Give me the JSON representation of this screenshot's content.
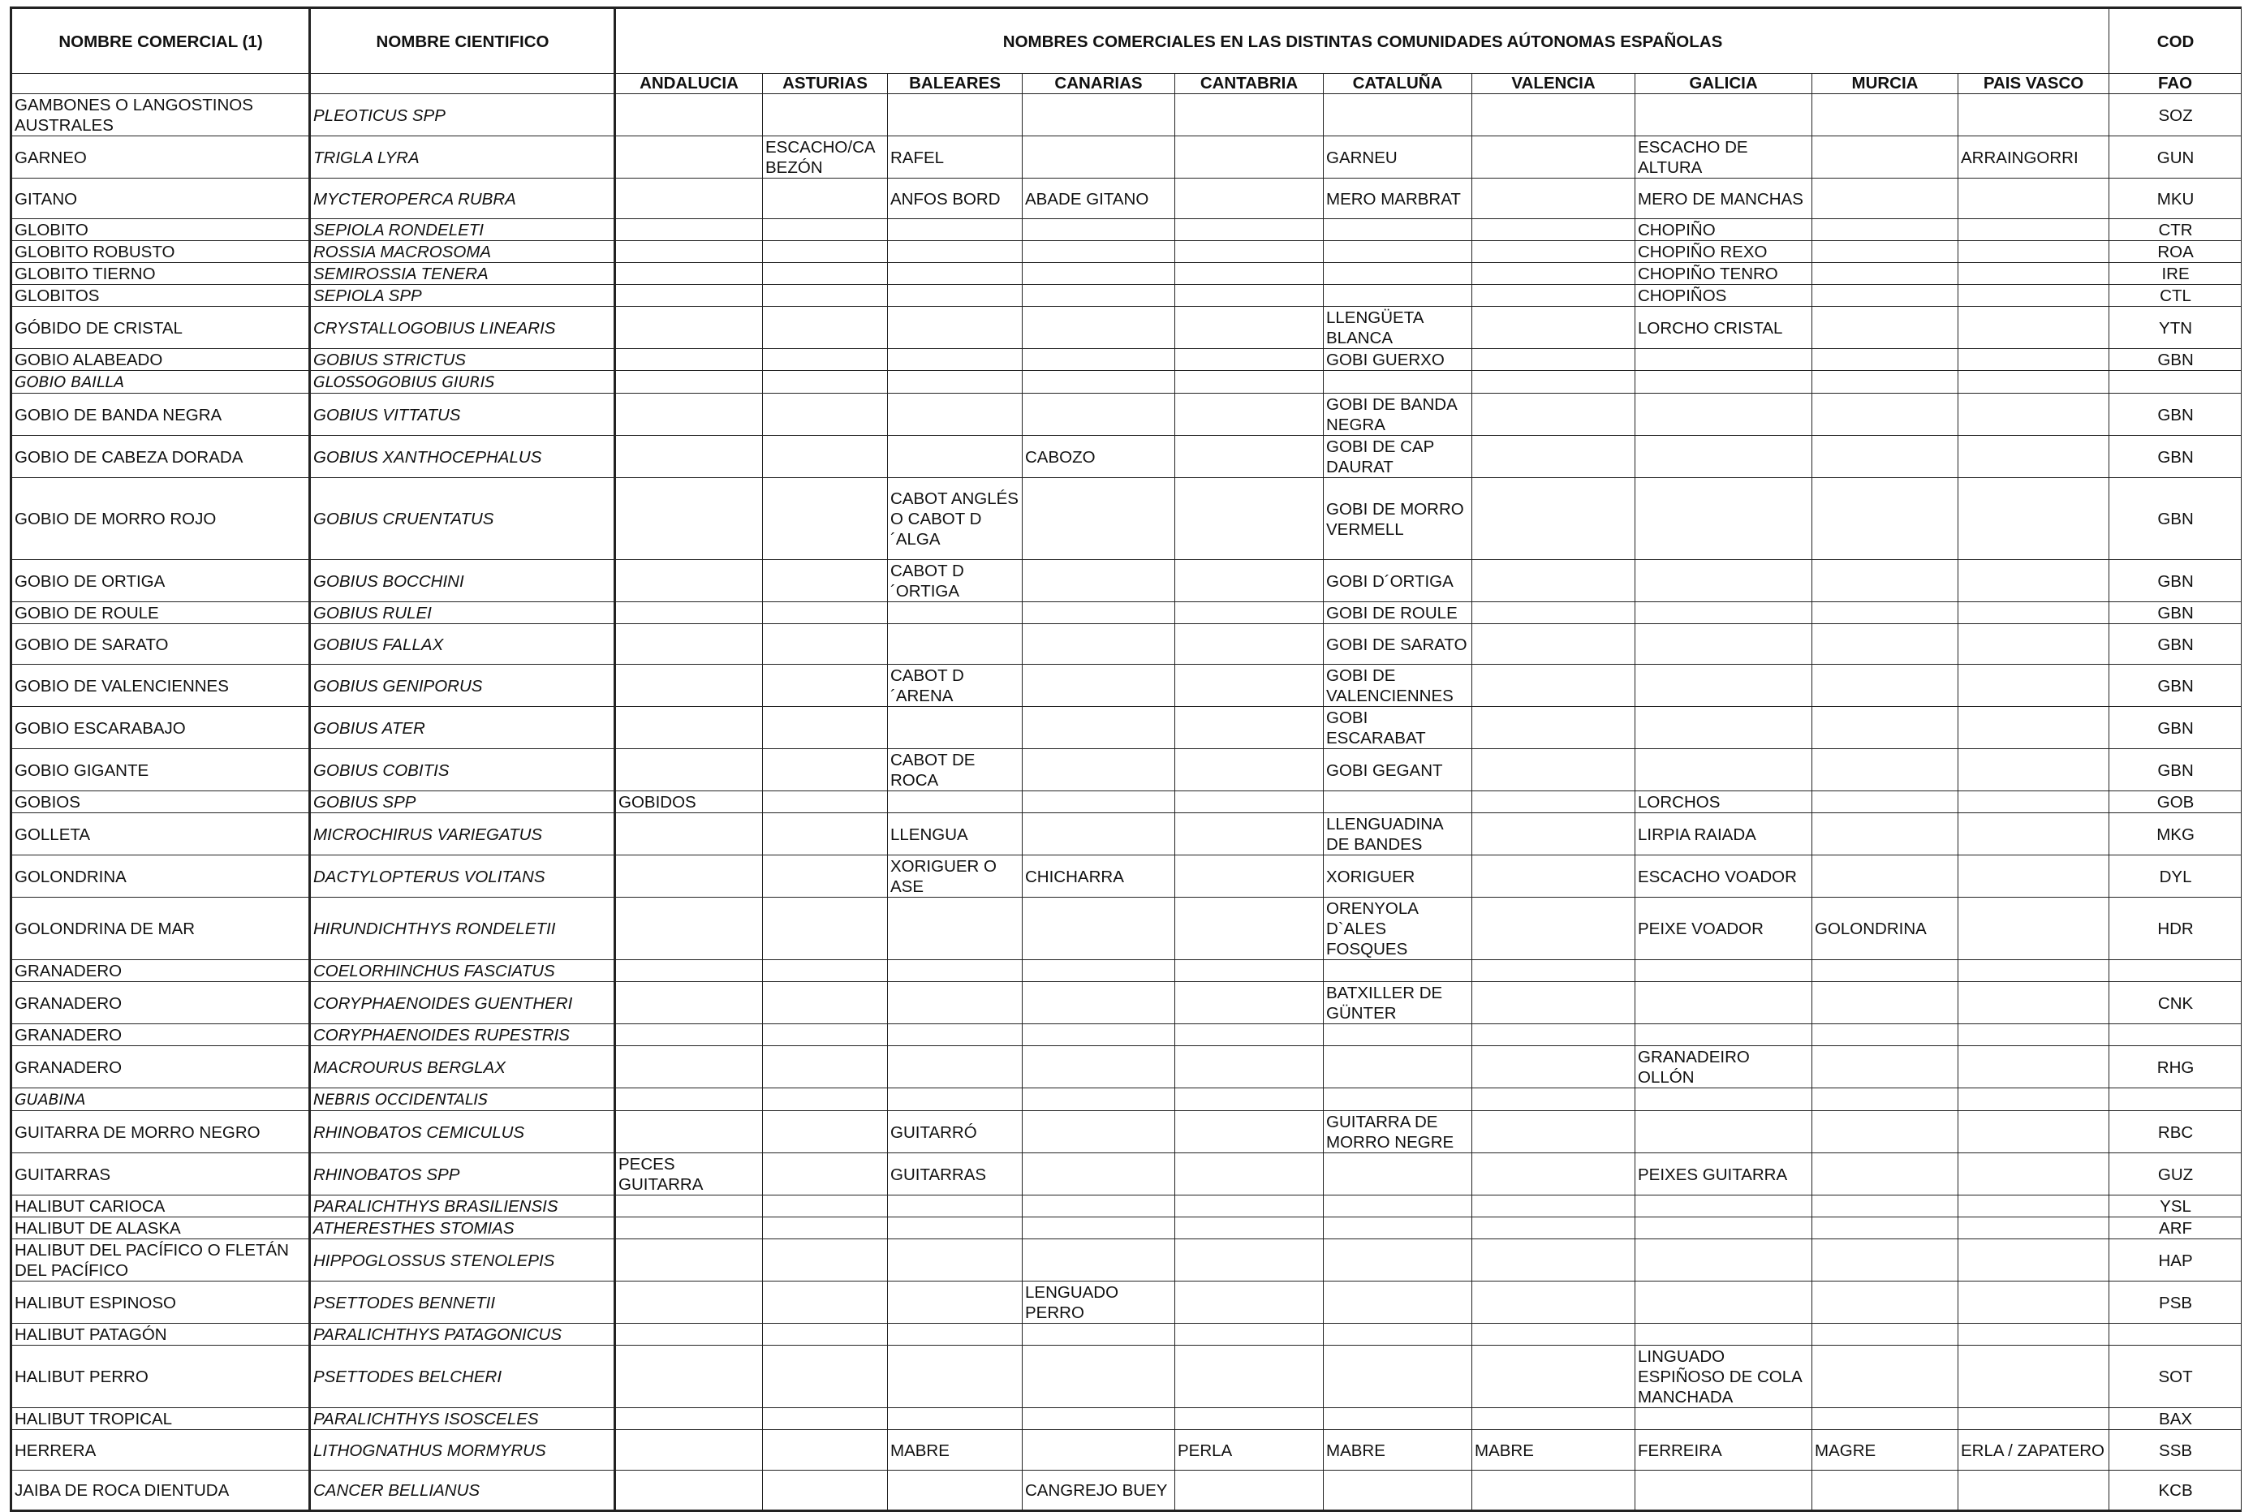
{
  "header": {
    "nombre_comercial": "NOMBRE COMERCIAL (1)",
    "nombre_cientifico": "NOMBRE CIENTIFICO",
    "group_title": "NOMBRES COMERCIALES EN LAS DISTINTAS COMUNIDADES AÚTONOMAS ESPAÑOLAS",
    "cod": "COD",
    "fao": "FAO",
    "regions": [
      "ANDALUCIA",
      "ASTURIAS",
      "BALEARES",
      "CANARIAS",
      "CANTABRIA",
      "CATALUÑA",
      "VALENCIA",
      "GALICIA",
      "MURCIA",
      "PAIS VASCO"
    ]
  },
  "rows": [
    {
      "h": 50,
      "nc": "GAMBONES O LANGOSTINOS AUSTRALES",
      "sci": "PLEOTICUS SPP",
      "r": [
        "",
        "",
        "",
        "",
        "",
        "",
        "",
        "",
        "",
        ""
      ],
      "cod": "SOZ"
    },
    {
      "h": 50,
      "nc": "GARNEO",
      "sci": "TRIGLA LYRA",
      "r": [
        "",
        "ESCACHO/CABEZÓN",
        "RAFEL",
        "",
        "",
        "GARNEU",
        "",
        "ESCACHO DE ALTURA",
        "",
        "ARRAINGORRI"
      ],
      "cod": "GUN"
    },
    {
      "h": 50,
      "nc": "GITANO",
      "sci": "MYCTEROPERCA RUBRA",
      "r": [
        "",
        "",
        "ANFOS BORD",
        "ABADE GITANO",
        "",
        "MERO MARBRAT",
        "",
        "MERO DE MANCHAS",
        "",
        ""
      ],
      "cod": "MKU"
    },
    {
      "h": 25,
      "nc": "GLOBITO",
      "sci": "SEPIOLA RONDELETI",
      "r": [
        "",
        "",
        "",
        "",
        "",
        "",
        "",
        "CHOPIÑO",
        "",
        ""
      ],
      "cod": "CTR"
    },
    {
      "h": 25,
      "nc": "GLOBITO ROBUSTO",
      "sci": "ROSSIA MACROSOMA",
      "r": [
        "",
        "",
        "",
        "",
        "",
        "",
        "",
        "CHOPIÑO REXO",
        "",
        ""
      ],
      "cod": "ROA"
    },
    {
      "h": 25,
      "nc": "GLOBITO TIERNO",
      "sci": "SEMIROSSIA TENERA",
      "r": [
        "",
        "",
        "",
        "",
        "",
        "",
        "",
        "CHOPIÑO TENRO",
        "",
        ""
      ],
      "cod": "IRE"
    },
    {
      "h": 25,
      "nc": "GLOBITOS",
      "sci": "SEPIOLA SPP",
      "r": [
        "",
        "",
        "",
        "",
        "",
        "",
        "",
        "CHOPIÑOS",
        "",
        ""
      ],
      "cod": "CTL"
    },
    {
      "h": 50,
      "nc": "GÓBIDO DE CRISTAL",
      "sci": "CRYSTALLOGOBIUS LINEARIS",
      "r": [
        "",
        "",
        "",
        "",
        "",
        "LLENGÜETA BLANCA",
        "",
        "LORCHO CRISTAL",
        "",
        ""
      ],
      "cod": "YTN"
    },
    {
      "h": 25,
      "nc": "GOBIO ALABEADO",
      "sci": "GOBIUS STRICTUS",
      "r": [
        "",
        "",
        "",
        "",
        "",
        "GOBI GUERXO",
        "",
        "",
        "",
        ""
      ],
      "cod": "GBN"
    },
    {
      "h": 28,
      "comic": true,
      "nc": "GOBIO BAILLA",
      "sci": "GLOSSOGOBIUS GIURIS",
      "r": [
        "",
        "",
        "",
        "",
        "",
        "",
        "",
        "",
        "",
        ""
      ],
      "cod": ""
    },
    {
      "h": 50,
      "nc": "GOBIO DE BANDA NEGRA",
      "sci": "GOBIUS VITTATUS",
      "r": [
        "",
        "",
        "",
        "",
        "",
        "GOBI DE BANDA NEGRA",
        "",
        "",
        "",
        ""
      ],
      "cod": "GBN"
    },
    {
      "h": 50,
      "nc": "GOBIO DE CABEZA DORADA",
      "sci": "GOBIUS XANTHOCEPHALUS",
      "r": [
        "",
        "",
        "",
        "CABOZO",
        "",
        "GOBI DE CAP DAURAT",
        "",
        "",
        "",
        ""
      ],
      "cod": "GBN"
    },
    {
      "h": 101,
      "nc": "GOBIO DE MORRO ROJO",
      "sci": "GOBIUS CRUENTATUS",
      "r": [
        "",
        "",
        "CABOT ANGLÉS O CABOT D´ALGA",
        "",
        "",
        "GOBI DE MORRO VERMELL",
        "",
        "",
        "",
        ""
      ],
      "cod": "GBN"
    },
    {
      "h": 50,
      "nc": "GOBIO DE ORTIGA",
      "sci": "GOBIUS BOCCHINI",
      "r": [
        "",
        "",
        "CABOT D´ORTIGA",
        "",
        "",
        "GOBI D´ORTIGA",
        "",
        "",
        "",
        ""
      ],
      "cod": "GBN"
    },
    {
      "h": 25,
      "nc": "GOBIO DE ROULE",
      "sci": "GOBIUS RULEI",
      "r": [
        "",
        "",
        "",
        "",
        "",
        "GOBI DE ROULE",
        "",
        "",
        "",
        ""
      ],
      "cod": "GBN"
    },
    {
      "h": 50,
      "nc": "GOBIO DE SARATO",
      "sci": "GOBIUS FALLAX",
      "r": [
        "",
        "",
        "",
        "",
        "",
        "GOBI DE SARATO",
        "",
        "",
        "",
        ""
      ],
      "cod": "GBN"
    },
    {
      "h": 50,
      "nc": "GOBIO DE VALENCIENNES",
      "sci": "GOBIUS GENIPORUS",
      "r": [
        "",
        "",
        "CABOT D´ARENA",
        "",
        "",
        "GOBI DE VALENCIENNES",
        "",
        "",
        "",
        ""
      ],
      "cod": "GBN"
    },
    {
      "h": 50,
      "nc": "GOBIO ESCARABAJO",
      "sci": "GOBIUS ATER",
      "r": [
        "",
        "",
        "",
        "",
        "",
        "GOBI ESCARABAT",
        "",
        "",
        "",
        ""
      ],
      "cod": "GBN"
    },
    {
      "h": 50,
      "nc": "GOBIO GIGANTE",
      "sci": "GOBIUS COBITIS",
      "r": [
        "",
        "",
        "CABOT DE ROCA",
        "",
        "",
        "GOBI GEGANT",
        "",
        "",
        "",
        ""
      ],
      "cod": "GBN"
    },
    {
      "h": 25,
      "nc": "GOBIOS",
      "sci": "GOBIUS SPP",
      "r": [
        "GOBIDOS",
        "",
        "",
        "",
        "",
        "",
        "",
        "LORCHOS",
        "",
        ""
      ],
      "cod": "GOB"
    },
    {
      "h": 50,
      "nc": "GOLLETA",
      "sci": "MICROCHIRUS VARIEGATUS",
      "r": [
        "",
        "",
        "LLENGUA",
        "",
        "",
        "LLENGUADINA DE BANDES",
        "",
        "LIRPIA RAIADA",
        "",
        ""
      ],
      "cod": "MKG"
    },
    {
      "h": 50,
      "nc": "GOLONDRINA",
      "sci": "DACTYLOPTERUS VOLITANS",
      "r": [
        "",
        "",
        "XORIGUER O ASE",
        "CHICHARRA",
        "",
        "XORIGUER",
        "",
        "ESCACHO VOADOR",
        "",
        ""
      ],
      "cod": "DYL"
    },
    {
      "h": 76,
      "nc": "GOLONDRINA DE MAR",
      "sci": "HIRUNDICHTHYS RONDELETII",
      "r": [
        "",
        "",
        "",
        "",
        "",
        "ORENYOLA D`ALES FOSQUES",
        "",
        "PEIXE VOADOR",
        "GOLONDRINA",
        ""
      ],
      "cod": "HDR"
    },
    {
      "h": 25,
      "nc": "GRANADERO",
      "sci": "COELORHINCHUS FASCIATUS",
      "r": [
        "",
        "",
        "",
        "",
        "",
        "",
        "",
        "",
        "",
        ""
      ],
      "cod": ""
    },
    {
      "h": 50,
      "nc": "GRANADERO",
      "sci": "CORYPHAENOIDES GUENTHERI",
      "r": [
        "",
        "",
        "",
        "",
        "",
        "BATXILLER DE GÜNTER",
        "",
        "",
        "",
        ""
      ],
      "cod": "CNK"
    },
    {
      "h": 25,
      "nc": "GRANADERO",
      "sci": "CORYPHAENOIDES RUPESTRIS",
      "r": [
        "",
        "",
        "",
        "",
        "",
        "",
        "",
        "",
        "",
        ""
      ],
      "cod": ""
    },
    {
      "h": 50,
      "nc": "GRANADERO",
      "sci": "MACROURUS BERGLAX",
      "r": [
        "",
        "",
        "",
        "",
        "",
        "",
        "",
        "GRANADEIRO OLLÓN",
        "",
        ""
      ],
      "cod": "RHG"
    },
    {
      "h": 28,
      "comic": true,
      "nc": "GUABINA",
      "sci": "NEBRIS OCCIDENTALIS",
      "r": [
        "",
        "",
        "",
        "",
        "",
        "",
        "",
        "",
        "",
        ""
      ],
      "cod": ""
    },
    {
      "h": 50,
      "nc": "GUITARRA DE MORRO NEGRO",
      "sci": "RHINOBATOS CEMICULUS",
      "r": [
        "",
        "",
        "GUITARRÓ",
        "",
        "",
        "GUITARRA DE MORRO NEGRE",
        "",
        "",
        "",
        ""
      ],
      "cod": "RBC"
    },
    {
      "h": 50,
      "nc": "GUITARRAS",
      "sci": "RHINOBATOS SPP",
      "r": [
        "PECES GUITARRA",
        "",
        "GUITARRAS",
        "",
        "",
        "",
        "",
        "PEIXES GUITARRA",
        "",
        ""
      ],
      "cod": "GUZ"
    },
    {
      "h": 25,
      "nc": "HALIBUT CARIOCA",
      "sci": "PARALICHTHYS BRASILIENSIS",
      "r": [
        "",
        "",
        "",
        "",
        "",
        "",
        "",
        "",
        "",
        ""
      ],
      "cod": "YSL"
    },
    {
      "h": 25,
      "nc": "HALIBUT DE ALASKA",
      "sci": "ATHERESTHES STOMIAS",
      "r": [
        "",
        "",
        "",
        "",
        "",
        "",
        "",
        "",
        "",
        ""
      ],
      "cod": "ARF"
    },
    {
      "h": 50,
      "nc": "HALIBUT DEL PACÍFICO O FLETÁN DEL PACÍFICO",
      "sci": "HIPPOGLOSSUS STENOLEPIS",
      "r": [
        "",
        "",
        "",
        "",
        "",
        "",
        "",
        "",
        "",
        ""
      ],
      "cod": "HAP"
    },
    {
      "h": 50,
      "nc": "HALIBUT ESPINOSO",
      "sci": "PSETTODES BENNETII",
      "r": [
        "",
        "",
        "",
        "LENGUADO PERRO",
        "",
        "",
        "",
        "",
        "",
        ""
      ],
      "cod": "PSB"
    },
    {
      "h": 25,
      "nc": "HALIBUT PATAGÓN",
      "sci": "PARALICHTHYS PATAGONICUS",
      "r": [
        "",
        "",
        "",
        "",
        "",
        "",
        "",
        "",
        "",
        ""
      ],
      "cod": ""
    },
    {
      "h": 76,
      "nc": "HALIBUT PERRO",
      "sci": "PSETTODES BELCHERI",
      "r": [
        "",
        "",
        "",
        "",
        "",
        "",
        "",
        "LINGUADO ESPIÑOSO DE COLA MANCHADA",
        "",
        ""
      ],
      "cod": "SOT"
    },
    {
      "h": 25,
      "nc": "HALIBUT TROPICAL",
      "sci": "PARALICHTHYS ISOSCELES",
      "r": [
        "",
        "",
        "",
        "",
        "",
        "",
        "",
        "",
        "",
        ""
      ],
      "cod": "BAX"
    },
    {
      "h": 50,
      "nc": "HERRERA",
      "sci": "LITHOGNATHUS MORMYRUS",
      "r": [
        "",
        "",
        "MABRE",
        "",
        "PERLA",
        "MABRE",
        "MABRE",
        "FERREIRA",
        "MAGRE",
        "ERLA / ZAPATERO"
      ],
      "cod": "SSB"
    },
    {
      "h": 50,
      "nc": "JAIBA DE ROCA DIENTUDA",
      "sci": "CANCER BELLIANUS",
      "r": [
        "",
        "",
        "",
        "CANGREJO BUEY",
        "",
        "",
        "",
        "",
        "",
        ""
      ],
      "cod": "KCB"
    }
  ]
}
